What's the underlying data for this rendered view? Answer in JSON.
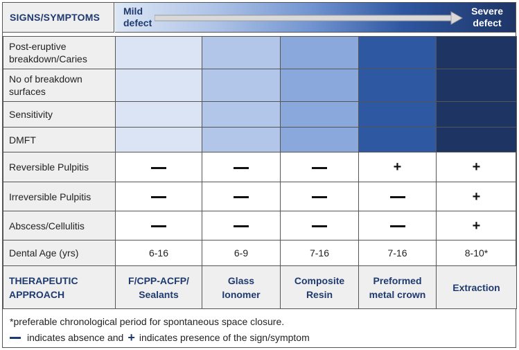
{
  "header": {
    "signs_label": "SIGNS/SYMPTOMS",
    "mild_line1": "Mild",
    "mild_line2": "defect",
    "severe_line1": "Severe",
    "severe_line2": "defect"
  },
  "severity_rows": [
    {
      "label_line1": "Post-eruptive",
      "label_line2": "breakdown/Caries"
    },
    {
      "label_line1": "No of breakdown",
      "label_line2": "surfaces"
    },
    {
      "label_line1": "Sensitivity",
      "label_line2": ""
    },
    {
      "label_line1": "DMFT",
      "label_line2": ""
    }
  ],
  "severity_colors": [
    "#dae4f4",
    "#b1c6e8",
    "#8aa8dc",
    "#2f58a3",
    "#1e3462"
  ],
  "sign_rows": [
    {
      "label": "Reversible Pulpitis",
      "values": [
        "absent",
        "absent",
        "absent",
        "present",
        "present"
      ]
    },
    {
      "label": "Irreversible Pulpitis",
      "values": [
        "absent",
        "absent",
        "absent",
        "absent",
        "present"
      ]
    },
    {
      "label": "Abscess/Cellulitis",
      "values": [
        "absent",
        "absent",
        "absent",
        "absent",
        "present"
      ]
    }
  ],
  "symbols": {
    "absent": "—",
    "present": "+"
  },
  "dental_age": {
    "label": "Dental Age (yrs)",
    "values": [
      "6-16",
      "6-9",
      "7-16",
      "7-16",
      "8-10*"
    ]
  },
  "therapeutic": {
    "label_line1": "THERAPEUTIC",
    "label_line2": "APPROACH",
    "approaches": [
      {
        "line1": "F/CPP-ACFP/",
        "line2": "Sealants"
      },
      {
        "line1": "Glass",
        "line2": "Ionomer"
      },
      {
        "line1": "Composite",
        "line2": "Resin"
      },
      {
        "line1": "Preformed",
        "line2": "metal crown"
      },
      {
        "line1": "Extraction",
        "line2": ""
      }
    ]
  },
  "footnote": "*preferable chronological period for spontaneous space closure.",
  "legend": {
    "part1": "indicates absence and",
    "part2": "indicates presence of the sign/symptom"
  },
  "colors": {
    "accent": "#1f3a6e",
    "label_bg": "#efefef"
  }
}
